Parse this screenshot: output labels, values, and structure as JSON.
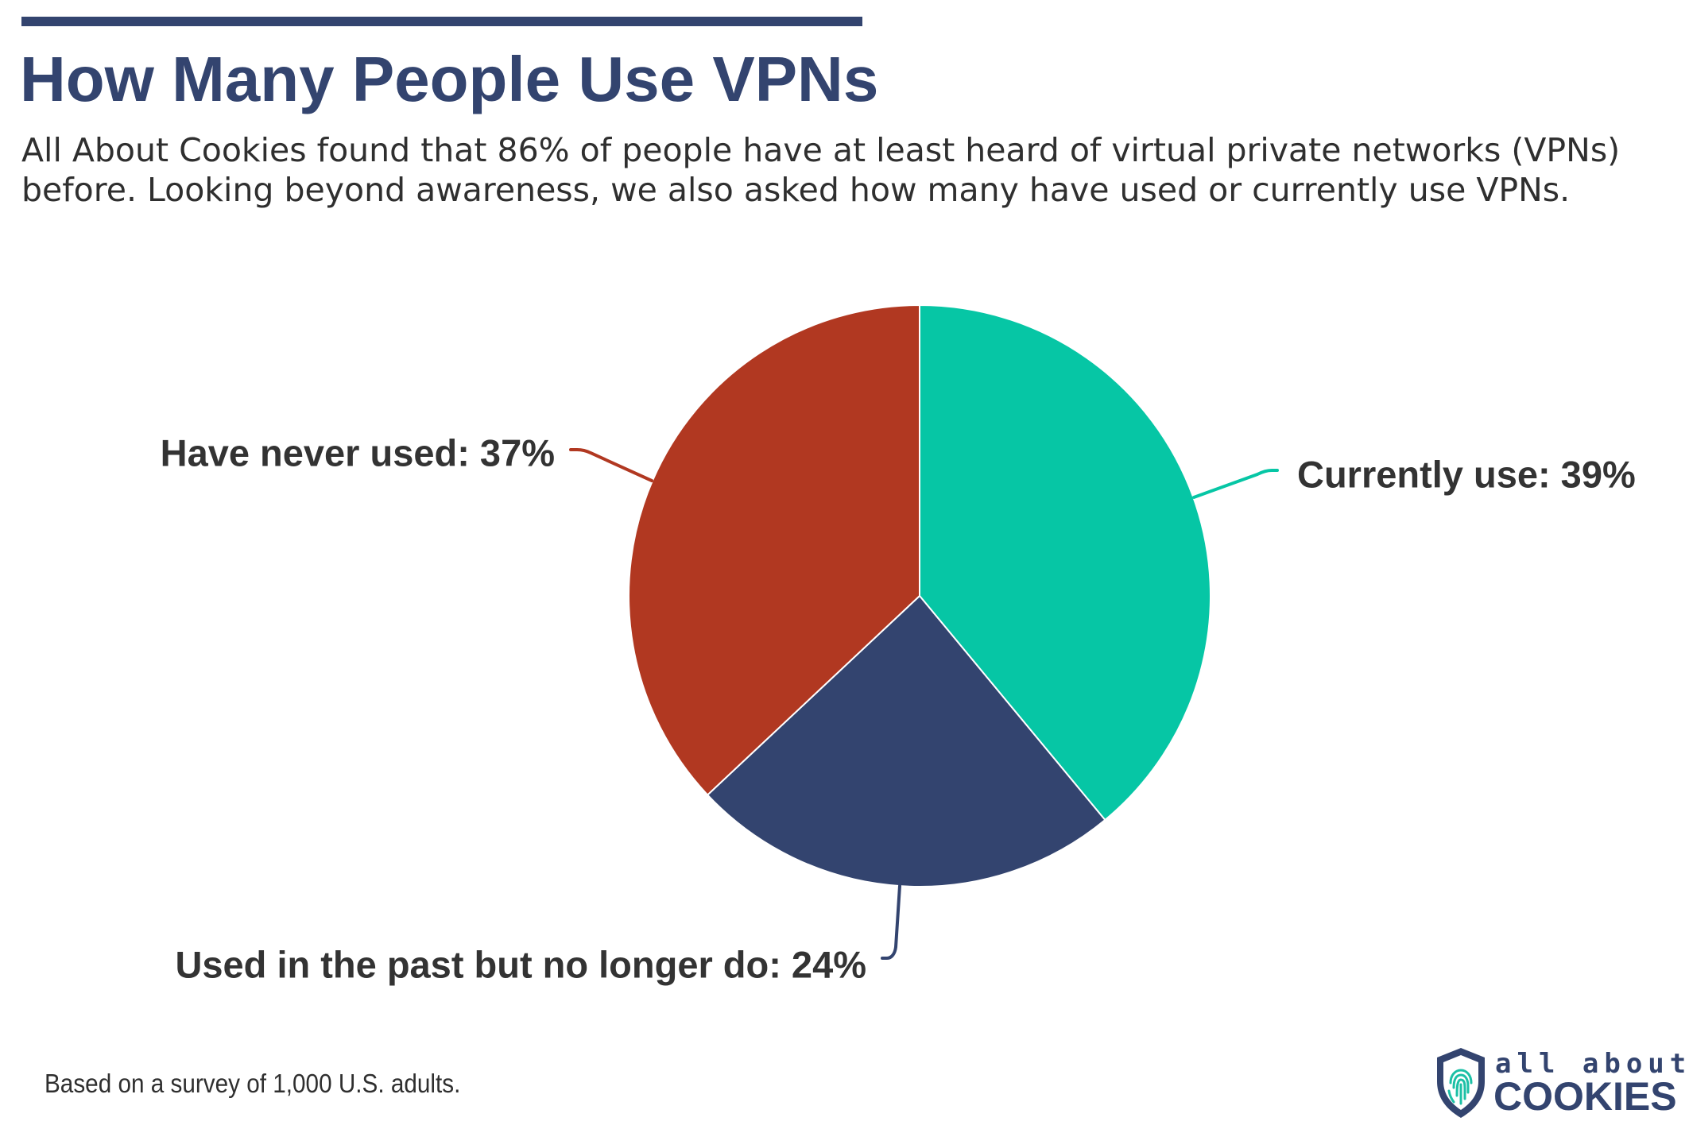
{
  "title": "How Many People Use VPNs",
  "subtitle": "All About Cookies found that 86% of people have at least heard of virtual private networks (VPNs) before. Looking beyond awareness, we also asked how many have used or currently use VPNs.",
  "footnote": "Based on a survey of 1,000 U.S. adults.",
  "logo": {
    "line1": "all about",
    "line2": "COOKIES"
  },
  "colors": {
    "title": "#33446f",
    "currently_use": "#06c6a5",
    "past": "#33446f",
    "never": "#b13821",
    "label_text": "#333333"
  },
  "chart_data": {
    "type": "pie",
    "title": "",
    "categories": [
      "Currently use",
      "Used in the past but no longer do",
      "Have never used"
    ],
    "values": [
      39,
      24,
      37
    ],
    "unit": "%",
    "labels": [
      "Currently use: 39%",
      "Used in the past but no longer do: 24%",
      "Have never used: 37%"
    ],
    "start": "top",
    "direction": "clockwise",
    "legend": "none"
  }
}
